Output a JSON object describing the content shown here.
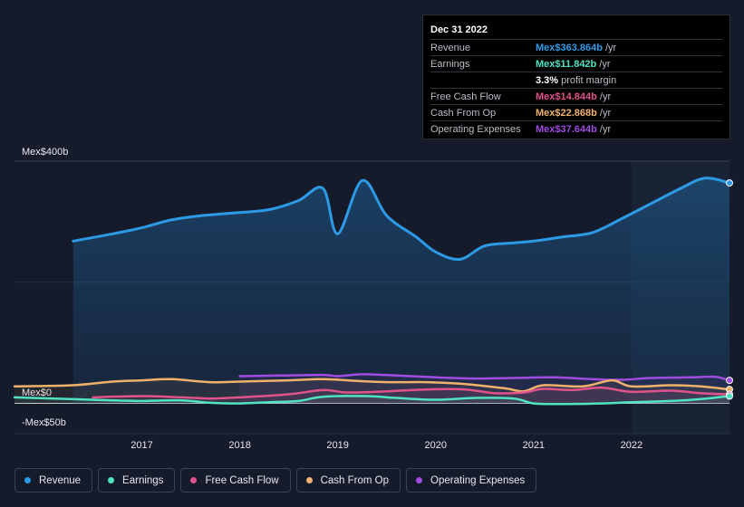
{
  "chart_data": {
    "type": "area",
    "currency_prefix": "Mex$",
    "y_axis": {
      "max_label": "Mex$400b",
      "zero_label": "Mex$0",
      "min_label": "-Mex$50b",
      "ylim": [
        -50,
        400
      ]
    },
    "x_axis": {
      "ticks": [
        {
          "label": "2017",
          "value": 2017.0
        },
        {
          "label": "2018",
          "value": 2018.0
        },
        {
          "label": "2019",
          "value": 2019.0
        },
        {
          "label": "2020",
          "value": 2020.0
        },
        {
          "label": "2021",
          "value": 2021.0
        },
        {
          "label": "2022",
          "value": 2022.0
        }
      ],
      "xlim": [
        2015.7,
        2023.0
      ]
    },
    "forecast_start": 2022.0,
    "series": [
      {
        "name": "Revenue",
        "color": "#2d9ae6",
        "fill": true,
        "points": [
          [
            2016.3,
            268
          ],
          [
            2016.7,
            280
          ],
          [
            2017.0,
            290
          ],
          [
            2017.3,
            303
          ],
          [
            2017.6,
            310
          ],
          [
            2017.9,
            314
          ],
          [
            2018.3,
            320
          ],
          [
            2018.6,
            335
          ],
          [
            2018.85,
            355
          ],
          [
            2019.0,
            280
          ],
          [
            2019.25,
            368
          ],
          [
            2019.5,
            310
          ],
          [
            2019.8,
            275
          ],
          [
            2020.0,
            250
          ],
          [
            2020.25,
            238
          ],
          [
            2020.5,
            260
          ],
          [
            2020.8,
            265
          ],
          [
            2021.0,
            268
          ],
          [
            2021.3,
            275
          ],
          [
            2021.6,
            282
          ],
          [
            2021.9,
            305
          ],
          [
            2022.2,
            330
          ],
          [
            2022.5,
            355
          ],
          [
            2022.75,
            372
          ],
          [
            2023.0,
            364
          ]
        ]
      },
      {
        "name": "Earnings",
        "color": "#4fe3c1",
        "fill": false,
        "points": [
          [
            2015.7,
            10
          ],
          [
            2016.3,
            7
          ],
          [
            2016.7,
            5
          ],
          [
            2017.0,
            4
          ],
          [
            2017.4,
            5
          ],
          [
            2017.7,
            1
          ],
          [
            2018.0,
            0
          ],
          [
            2018.3,
            2
          ],
          [
            2018.6,
            4
          ],
          [
            2018.85,
            11
          ],
          [
            2019.3,
            12
          ],
          [
            2019.6,
            9
          ],
          [
            2020.0,
            6
          ],
          [
            2020.4,
            9
          ],
          [
            2020.8,
            8
          ],
          [
            2021.0,
            0
          ],
          [
            2021.3,
            -1
          ],
          [
            2021.7,
            0
          ],
          [
            2022.0,
            2
          ],
          [
            2022.4,
            4
          ],
          [
            2022.7,
            7
          ],
          [
            2023.0,
            12
          ]
        ]
      },
      {
        "name": "Free Cash Flow",
        "color": "#e0538a",
        "fill": false,
        "points": [
          [
            2016.5,
            10
          ],
          [
            2017.0,
            12
          ],
          [
            2017.4,
            10
          ],
          [
            2017.7,
            8
          ],
          [
            2018.0,
            10
          ],
          [
            2018.5,
            15
          ],
          [
            2018.85,
            22
          ],
          [
            2019.1,
            18
          ],
          [
            2019.5,
            20
          ],
          [
            2019.9,
            23
          ],
          [
            2020.3,
            23
          ],
          [
            2020.6,
            17
          ],
          [
            2020.9,
            18
          ],
          [
            2021.1,
            24
          ],
          [
            2021.4,
            22
          ],
          [
            2021.7,
            26
          ],
          [
            2022.0,
            19
          ],
          [
            2022.4,
            21
          ],
          [
            2022.7,
            17
          ],
          [
            2023.0,
            15
          ]
        ]
      },
      {
        "name": "Cash From Op",
        "color": "#f0b16b",
        "fill": false,
        "points": [
          [
            2015.7,
            28
          ],
          [
            2016.3,
            30
          ],
          [
            2016.7,
            36
          ],
          [
            2017.0,
            38
          ],
          [
            2017.3,
            40
          ],
          [
            2017.7,
            35
          ],
          [
            2018.0,
            36
          ],
          [
            2018.5,
            38
          ],
          [
            2018.85,
            40
          ],
          [
            2019.2,
            37
          ],
          [
            2019.5,
            35
          ],
          [
            2019.9,
            35
          ],
          [
            2020.3,
            32
          ],
          [
            2020.7,
            25
          ],
          [
            2020.9,
            20
          ],
          [
            2021.1,
            30
          ],
          [
            2021.5,
            28
          ],
          [
            2021.8,
            38
          ],
          [
            2022.0,
            28
          ],
          [
            2022.4,
            30
          ],
          [
            2022.7,
            28
          ],
          [
            2023.0,
            23
          ]
        ]
      },
      {
        "name": "Operating Expenses",
        "color": "#a04ce0",
        "fill": false,
        "points": [
          [
            2018.0,
            45
          ],
          [
            2018.4,
            46
          ],
          [
            2018.85,
            47
          ],
          [
            2019.0,
            45
          ],
          [
            2019.25,
            48
          ],
          [
            2019.6,
            46
          ],
          [
            2020.0,
            43
          ],
          [
            2020.4,
            41
          ],
          [
            2020.8,
            42
          ],
          [
            2021.2,
            43
          ],
          [
            2021.6,
            40
          ],
          [
            2021.9,
            39
          ],
          [
            2022.2,
            42
          ],
          [
            2022.6,
            43
          ],
          [
            2022.85,
            44
          ],
          [
            2023.0,
            38
          ]
        ]
      }
    ]
  },
  "tooltip": {
    "date": "Dec 31 2022",
    "rows": [
      {
        "label": "Revenue",
        "value": "Mex$363.864b",
        "unit": "/yr",
        "color": "#2d9ae6"
      },
      {
        "label": "Earnings",
        "value": "Mex$11.842b",
        "unit": "/yr",
        "color": "#4fe3c1"
      },
      {
        "label": "",
        "value": "3.3%",
        "unit": "profit margin",
        "color": "#ffffff"
      },
      {
        "label": "Free Cash Flow",
        "value": "Mex$14.844b",
        "unit": "/yr",
        "color": "#e0538a"
      },
      {
        "label": "Cash From Op",
        "value": "Mex$22.868b",
        "unit": "/yr",
        "color": "#f0b16b"
      },
      {
        "label": "Operating Expenses",
        "value": "Mex$37.644b",
        "unit": "/yr",
        "color": "#a04ce0"
      }
    ]
  },
  "legend": [
    {
      "label": "Revenue",
      "color": "#2d9ae6"
    },
    {
      "label": "Earnings",
      "color": "#4fe3c1"
    },
    {
      "label": "Free Cash Flow",
      "color": "#e0538a"
    },
    {
      "label": "Cash From Op",
      "color": "#f0b16b"
    },
    {
      "label": "Operating Expenses",
      "color": "#a04ce0"
    }
  ]
}
